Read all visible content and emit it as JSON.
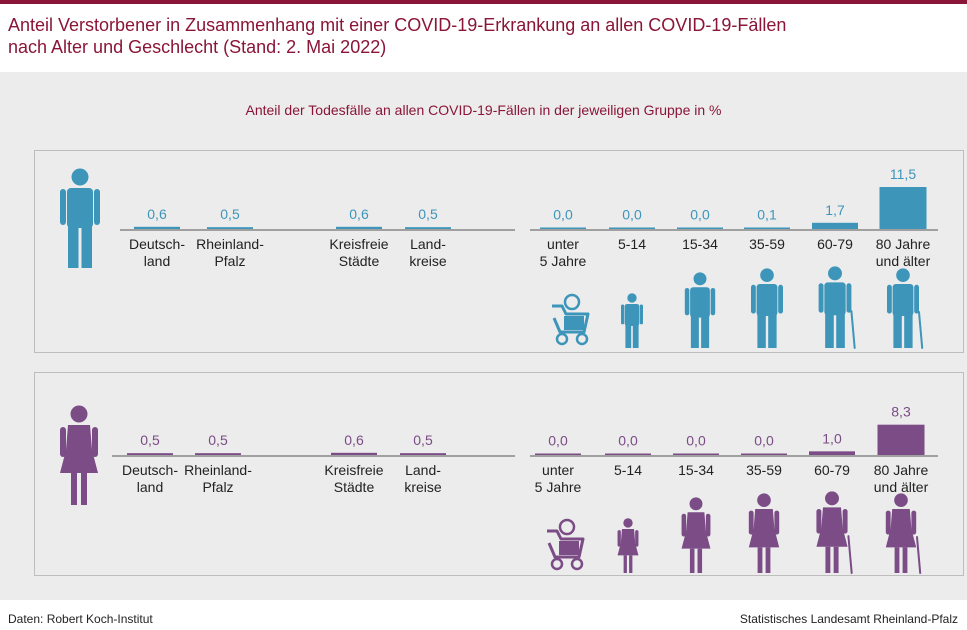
{
  "title_line1": "Anteil Verstorbener in Zusammenhang mit einer COVID-19-Erkrankung an allen COVID-19-Fällen",
  "title_line2": "nach Alter und Geschlecht (Stand: 2. Mai 2022)",
  "subtitle": "Anteil der Todesfälle an allen COVID-19-Fällen in der jeweiligen Gruppe in %",
  "footer_source": "Daten: Robert Koch-Institut",
  "footer_publisher": "Statistisches Landesamt Rheinland-Pfalz",
  "colors": {
    "title": "#8a1538",
    "male": "#3d95ba",
    "female": "#7b4c86",
    "panel": "#ececec"
  },
  "chart_data": [
    {
      "type": "bar",
      "series_name": "männlich",
      "color": "#3d95ba",
      "categories": [
        "Deutsch-\nland",
        "Rheinland-\nPfalz",
        "Kreisfreie\nStädte",
        "Land-\nkreise",
        "unter\n5 Jahre",
        "5-14",
        "15-34",
        "35-59",
        "60-79",
        "80 Jahre\nund älter"
      ],
      "value_labels": [
        "0,6",
        "0,5",
        "0,6",
        "0,5",
        "0,0",
        "0,0",
        "0,0",
        "0,1",
        "1,7",
        "11,5"
      ],
      "values": [
        0.6,
        0.5,
        0.6,
        0.5,
        0.0,
        0.0,
        0.0,
        0.1,
        1.7,
        11.5
      ],
      "icons": [
        "male-icon",
        "male-stroller-baby-icon",
        "male-child-icon",
        "male-young-adult-icon",
        "male-adult-icon",
        "male-senior-icon",
        "male-elderly-icon"
      ]
    },
    {
      "type": "bar",
      "series_name": "weiblich",
      "color": "#7b4c86",
      "categories": [
        "Deutsch-\nland",
        "Rheinland-\nPfalz",
        "Kreisfreie\nStädte",
        "Land-\nkreise",
        "unter\n5 Jahre",
        "5-14",
        "15-34",
        "35-59",
        "60-79",
        "80 Jahre\nund älter"
      ],
      "value_labels": [
        "0,5",
        "0,5",
        "0,6",
        "0,5",
        "0,0",
        "0,0",
        "0,0",
        "0,0",
        "1,0",
        "8,3"
      ],
      "values": [
        0.5,
        0.5,
        0.6,
        0.5,
        0.0,
        0.0,
        0.0,
        0.0,
        1.0,
        8.3
      ],
      "icons": [
        "female-icon",
        "female-stroller-baby-icon",
        "female-child-icon",
        "female-young-adult-icon",
        "female-adult-icon",
        "female-senior-icon",
        "female-elderly-icon"
      ]
    }
  ]
}
